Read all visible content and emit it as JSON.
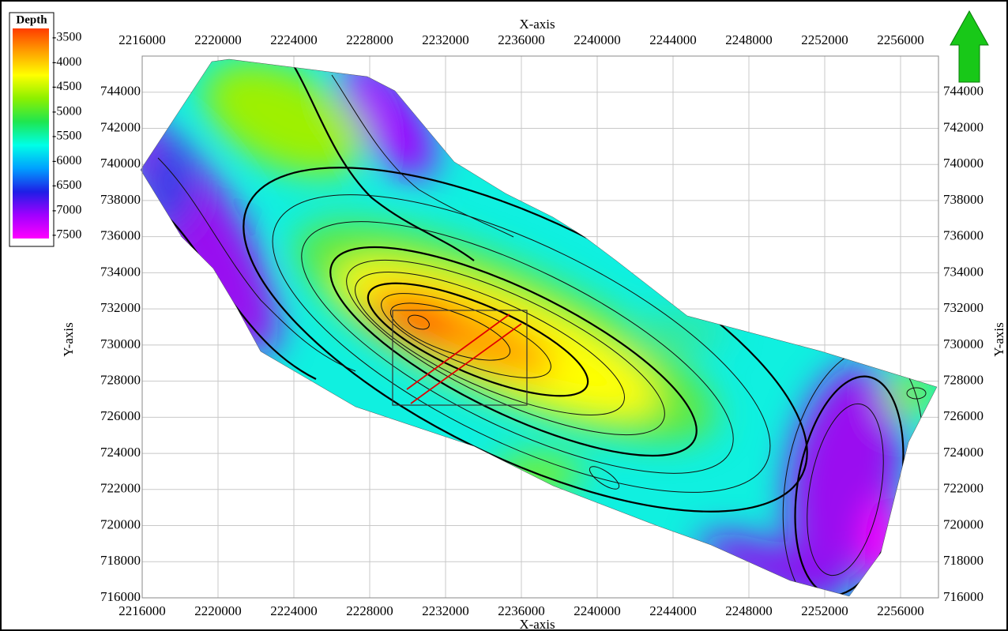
{
  "map": {
    "x_axis_label": "X-axis",
    "y_axis_label": "Y-axis",
    "xlim": [
      2216000,
      2258000
    ],
    "ylim": [
      716000,
      746000
    ],
    "xticks": [
      2216000,
      2220000,
      2224000,
      2228000,
      2232000,
      2236000,
      2240000,
      2244000,
      2248000,
      2252000,
      2256000
    ],
    "yticks": [
      716000,
      718000,
      720000,
      722000,
      724000,
      726000,
      728000,
      730000,
      732000,
      734000,
      736000,
      738000,
      740000,
      742000,
      744000
    ],
    "grid": true,
    "legend": {
      "title": "Depth",
      "ticks": [
        -3500,
        -4000,
        -4500,
        -5000,
        -5500,
        -6000,
        -6500,
        -7000,
        -7500
      ],
      "colors": [
        "#ff3c00",
        "#ffa000",
        "#ffff00",
        "#8cf000",
        "#1ee650",
        "#00ffe6",
        "#00a0ff",
        "#1e1ee6",
        "#a000ff",
        "#ff00ff"
      ]
    }
  }
}
